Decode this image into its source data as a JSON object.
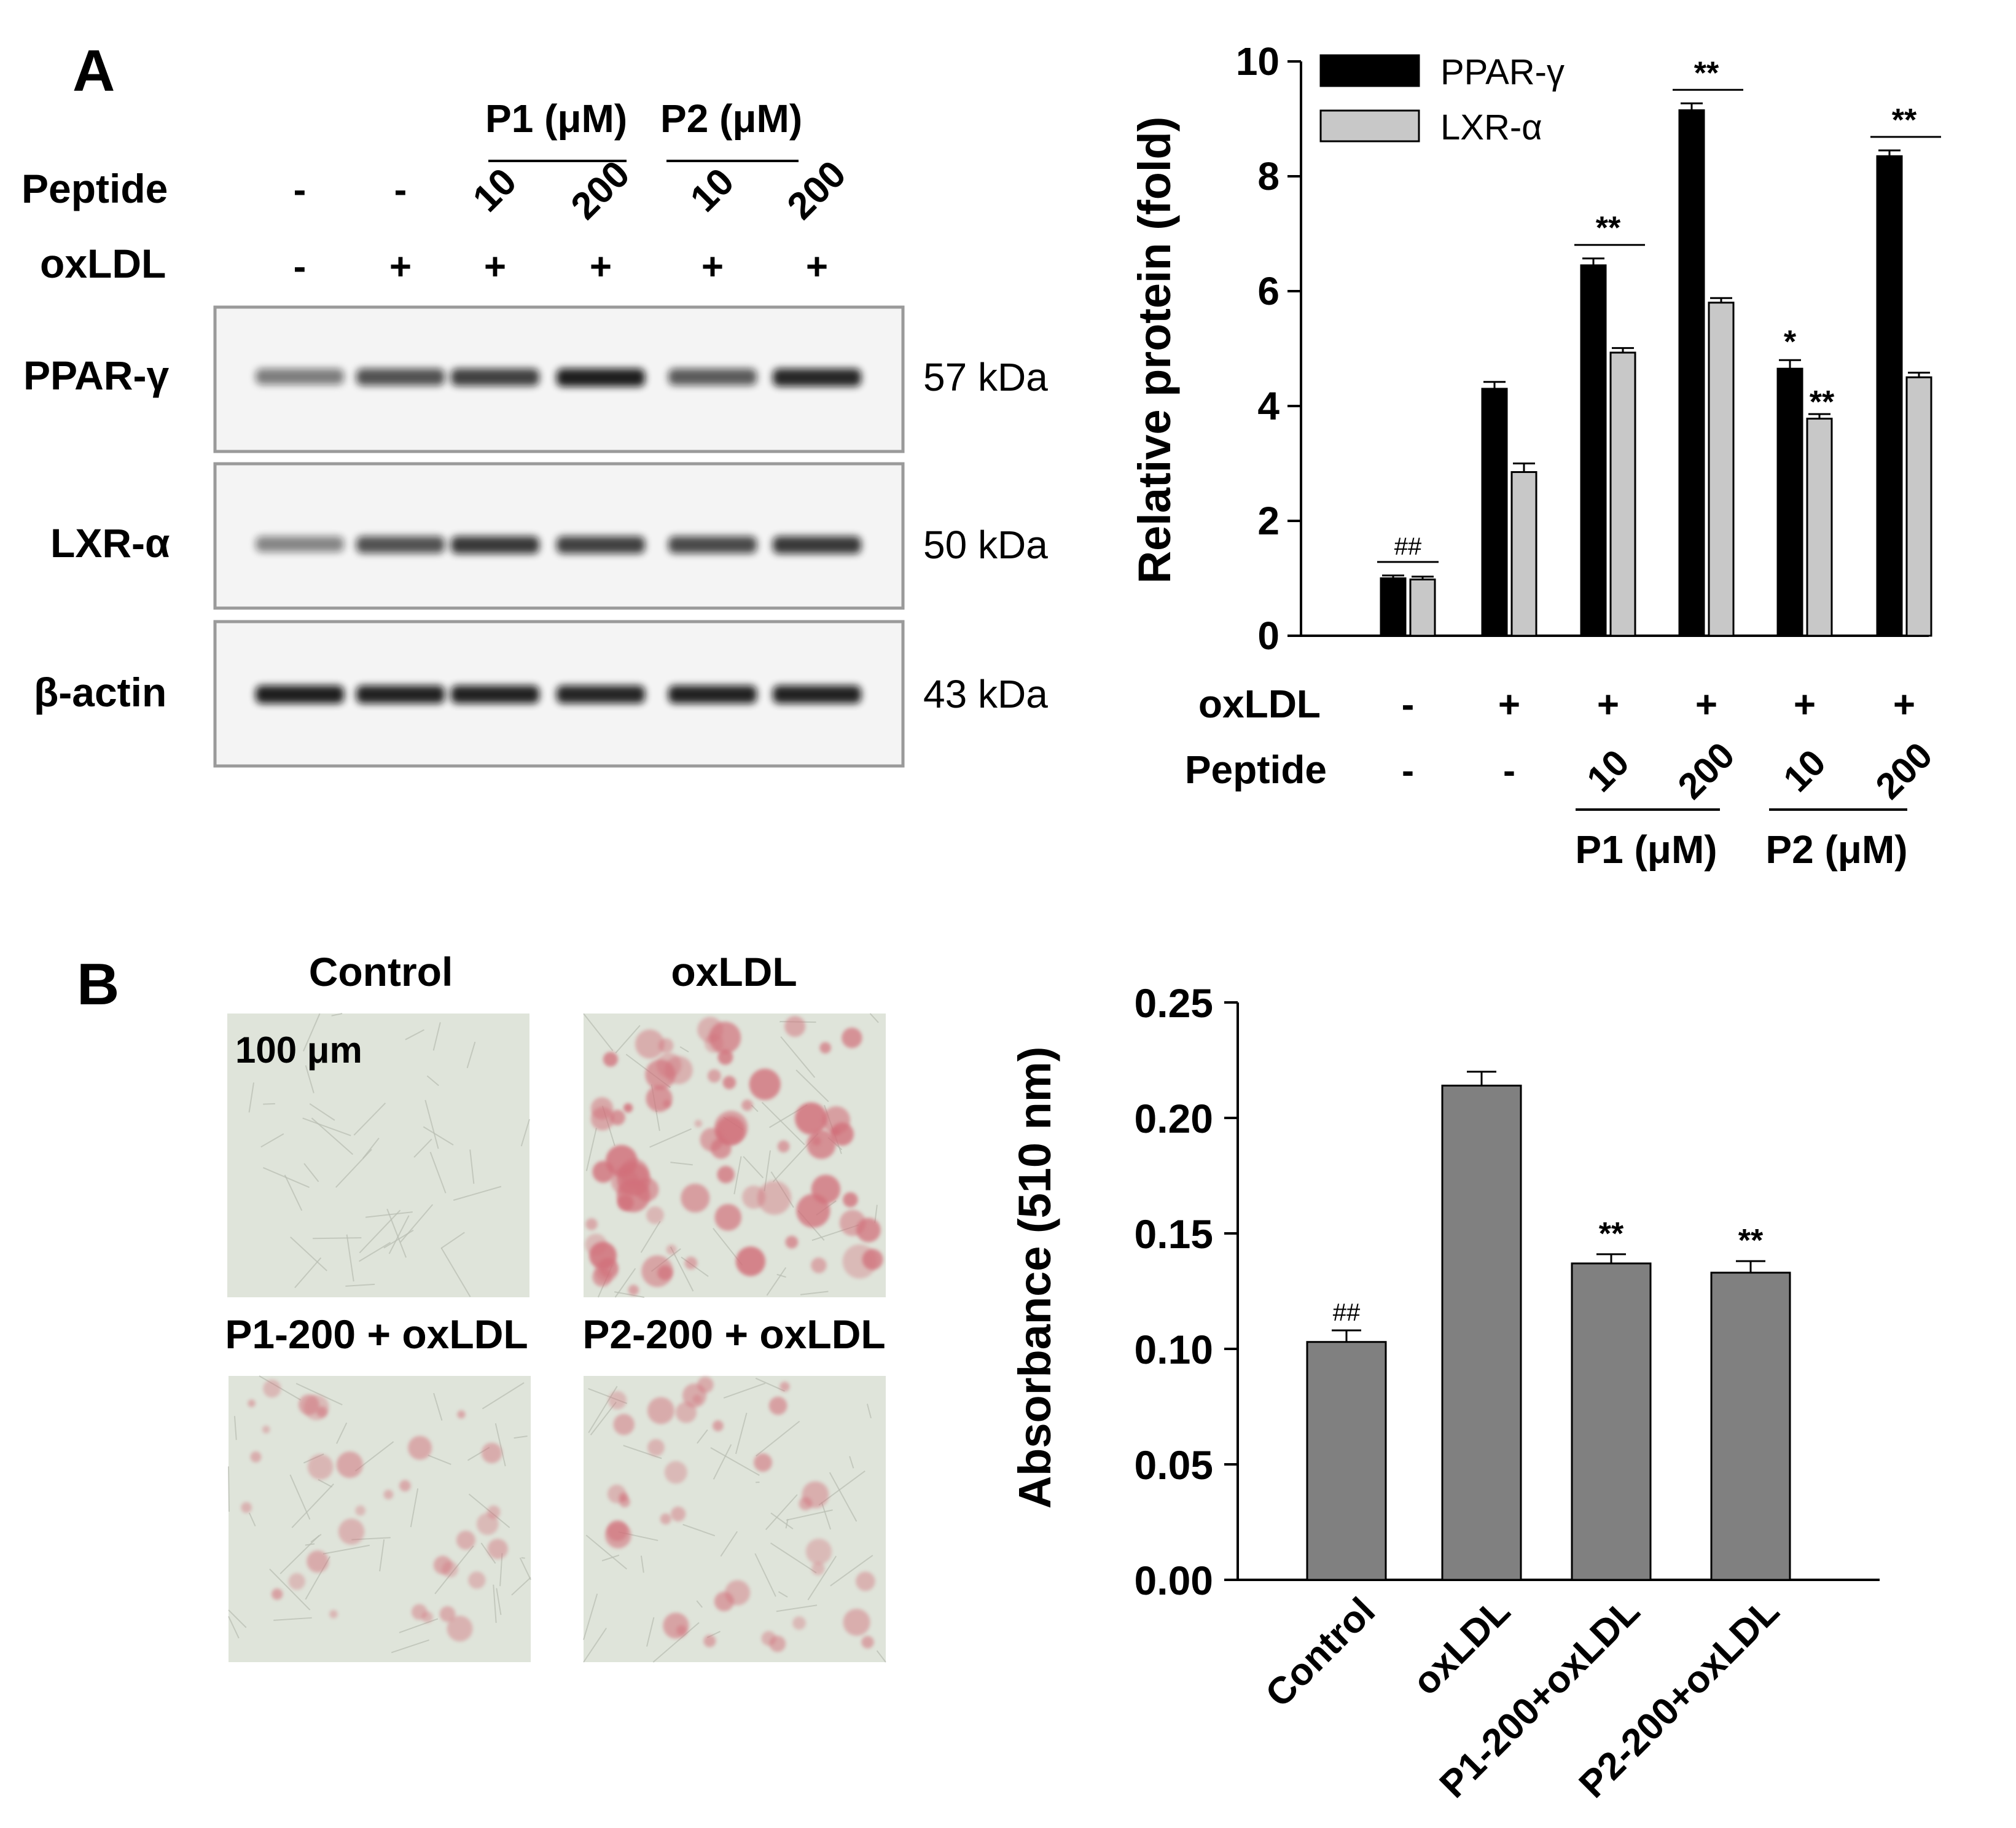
{
  "panel_a": {
    "label": "A",
    "blot": {
      "group_p1": "P1 (μM)",
      "group_p2": "P2 (μM)",
      "row_peptide_label": "Peptide",
      "row_oxldl_label": "oxLDL",
      "peptide_values": [
        "-",
        "-",
        "10",
        "200",
        "10",
        "200"
      ],
      "oxldl_values": [
        "-",
        "+",
        "+",
        "+",
        "+",
        "+"
      ],
      "proteins": [
        {
          "name": "PPAR-γ",
          "kda": "57 kDa",
          "intensity": [
            0.35,
            0.6,
            0.7,
            0.9,
            0.55,
            0.85
          ]
        },
        {
          "name": "LXR-α",
          "kda": "50 kDa",
          "intensity": [
            0.3,
            0.6,
            0.75,
            0.7,
            0.65,
            0.75
          ]
        },
        {
          "name": "β-actin",
          "kda": "43 kDa",
          "intensity": [
            0.9,
            0.88,
            0.88,
            0.86,
            0.88,
            0.88
          ]
        }
      ],
      "colors": {
        "band": "#111111",
        "panel_bg": "#f4f4f4",
        "panel_border": "#9a9a9a"
      }
    }
  },
  "panel_b": {
    "label": "B",
    "micrographs": {
      "titles": [
        "Control",
        "oxLDL",
        "P1-200 + oxLDL",
        "P2-200 + oxLDL"
      ],
      "scale_bar": "100 μm",
      "stain_level": [
        0.0,
        1.0,
        0.45,
        0.5
      ],
      "colors": {
        "background": "#dfe4da",
        "stain": "#d2707a"
      }
    }
  },
  "chart_data": [
    {
      "type": "bar",
      "ylabel": "Relative protein (fold)",
      "ylim": [
        0,
        10
      ],
      "yticks": [
        "0",
        "2",
        "4",
        "6",
        "8",
        "10"
      ],
      "legend_position": "top-left",
      "grid": false,
      "series": [
        {
          "name": "PPAR-γ",
          "color": "#000000",
          "values": [
            1.0,
            4.3,
            6.45,
            9.15,
            4.65,
            8.35
          ],
          "errors": [
            0.05,
            0.12,
            0.12,
            0.12,
            0.15,
            0.1
          ]
        },
        {
          "name": "LXR-α",
          "color": "#c8c8c8",
          "values": [
            0.98,
            2.85,
            4.93,
            5.8,
            3.78,
            4.5
          ],
          "errors": [
            0.05,
            0.15,
            0.08,
            0.08,
            0.08,
            0.08
          ]
        }
      ],
      "row_oxldl_label": "oxLDL",
      "row_peptide_label": "Peptide",
      "oxldl_values": [
        "-",
        "+",
        "+",
        "+",
        "+",
        "+"
      ],
      "peptide_values": [
        "-",
        "-",
        "10",
        "200",
        "10",
        "200"
      ],
      "group_p1": "P1 (μM)",
      "group_p2": "P2 (μM)",
      "annotations": {
        "control_sig": "##",
        "pair_sig": [
          "",
          "",
          "**",
          "**",
          "",
          "**"
        ],
        "p2_10_ppar_sig": "*",
        "p2_10_lxr_sig": "**"
      }
    },
    {
      "type": "bar",
      "ylabel": "Absorbance (510 nm)",
      "ylim": [
        0,
        0.25
      ],
      "yticks": [
        "0.00",
        "0.05",
        "0.10",
        "0.15",
        "0.20",
        "0.25"
      ],
      "grid": false,
      "categories": [
        "Control",
        "oxLDL",
        "P1-200+oxLDL",
        "P2-200+oxLDL"
      ],
      "values": [
        0.103,
        0.214,
        0.137,
        0.133
      ],
      "errors": [
        0.005,
        0.006,
        0.004,
        0.005
      ],
      "color": "#808080",
      "annotations": [
        "##",
        "",
        "**",
        "**"
      ]
    }
  ]
}
